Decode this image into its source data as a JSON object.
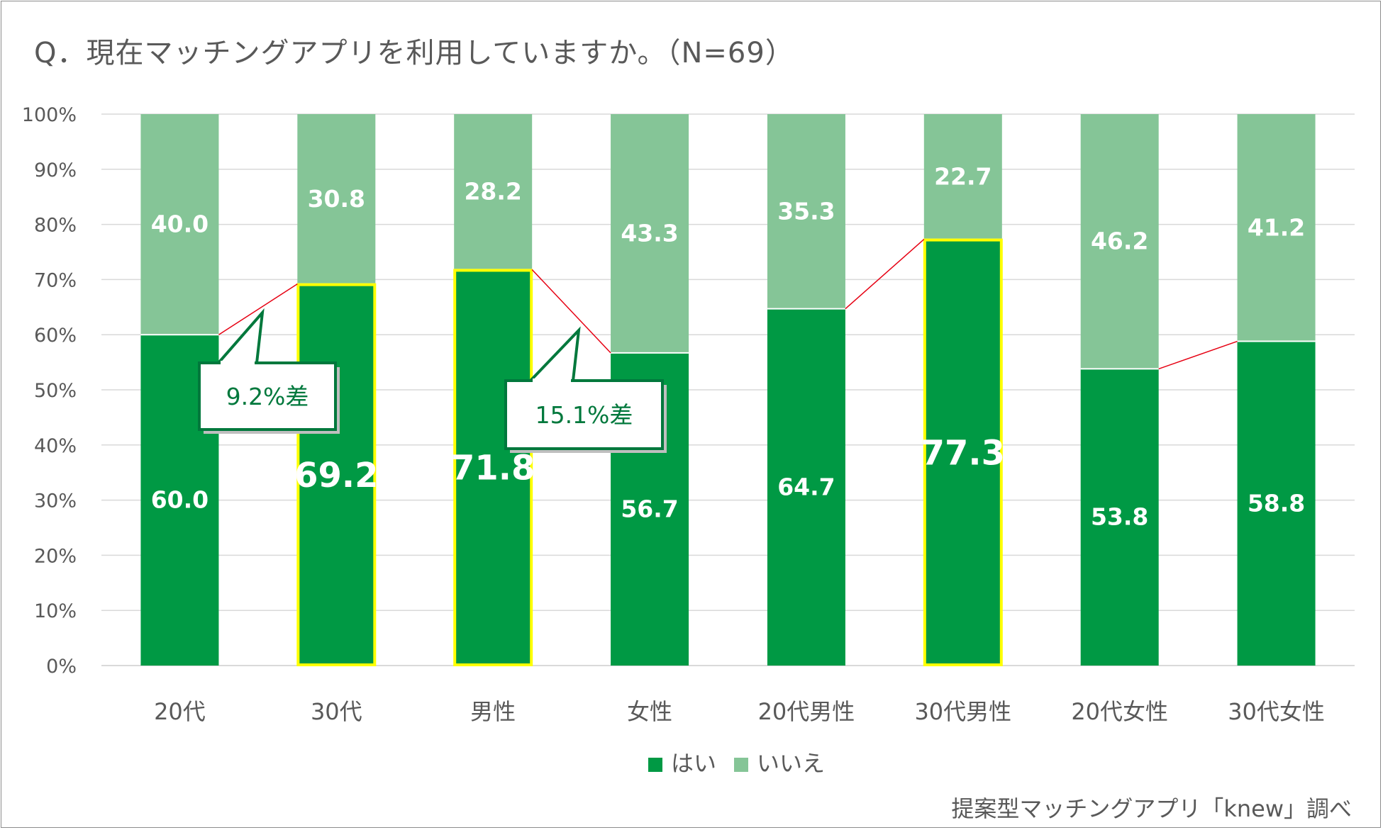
{
  "title": "Q．現在マッチングアプリを利用していますか。（N=69）",
  "source": "提案型マッチングアプリ「knew」調べ",
  "colors": {
    "yes": "#009944",
    "no": "#85c597",
    "grid": "#d9d9d9",
    "axis_text": "#595959",
    "highlight": "#ffff00",
    "connector": "#e60012",
    "callout_border": "#00783c",
    "callout_text": "#00783c"
  },
  "chart_data": {
    "type": "bar",
    "stacked": true,
    "percent": true,
    "categories": [
      "20代",
      "30代",
      "男性",
      "女性",
      "20代男性",
      "30代男性",
      "20代女性",
      "30代女性"
    ],
    "series": [
      {
        "name": "はい",
        "values": [
          60.0,
          69.2,
          71.8,
          56.7,
          64.7,
          77.3,
          53.8,
          58.8
        ]
      },
      {
        "name": "いいえ",
        "values": [
          40.0,
          30.8,
          28.2,
          43.3,
          35.3,
          22.7,
          46.2,
          41.2
        ]
      }
    ],
    "value_labels": {
      "はい": [
        "60.0",
        "69.2",
        "71.8",
        "56.7",
        "64.7",
        "77.3",
        "53.8",
        "58.8"
      ],
      "いいえ": [
        "40.0",
        "30.8",
        "28.2",
        "43.3",
        "35.3",
        "22.7",
        "46.2",
        "41.2"
      ]
    },
    "highlighted_categories": [
      "30代",
      "男性",
      "30代男性"
    ],
    "y_ticks": [
      "0%",
      "10%",
      "20%",
      "30%",
      "40%",
      "50%",
      "60%",
      "70%",
      "80%",
      "90%",
      "100%"
    ],
    "ylim": [
      0,
      100
    ],
    "grid": true,
    "legend": {
      "position": "bottom",
      "entries": [
        "はい",
        "いいえ"
      ]
    },
    "connectors": [
      [
        0,
        1
      ],
      [
        2,
        3
      ],
      [
        4,
        5
      ],
      [
        6,
        7
      ]
    ],
    "callouts": [
      {
        "text": "9.2%差",
        "between": [
          "20代",
          "30代"
        ]
      },
      {
        "text": "15.1%差",
        "between": [
          "男性",
          "女性"
        ]
      }
    ]
  }
}
